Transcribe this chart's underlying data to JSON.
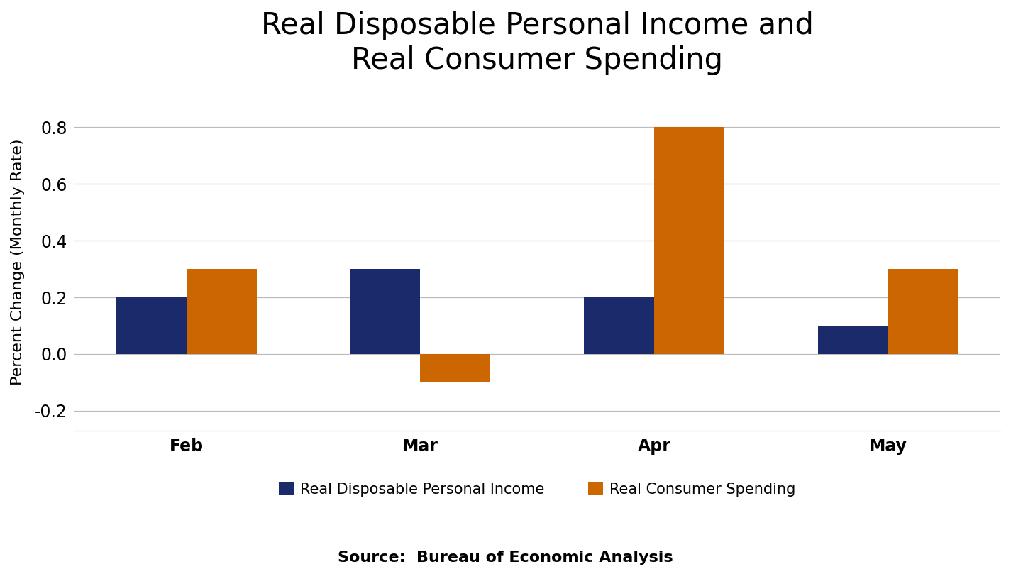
{
  "title": "Real Disposable Personal Income and\nReal Consumer Spending",
  "ylabel": "Percent Change (Monthly Rate)",
  "source": "Source:  Bureau of Economic Analysis",
  "categories": [
    "Feb",
    "Mar",
    "Apr",
    "May"
  ],
  "income_values": [
    0.2,
    0.3,
    0.2,
    0.1
  ],
  "spending_values": [
    0.3,
    -0.1,
    0.8,
    0.3
  ],
  "income_color": "#1B2A6B",
  "spending_color": "#CC6600",
  "ylim": [
    -0.27,
    0.92
  ],
  "yticks": [
    -0.2,
    0.0,
    0.2,
    0.4,
    0.6,
    0.8
  ],
  "bar_width": 0.3,
  "legend_income": "Real Disposable Personal Income",
  "legend_spending": "Real Consumer Spending",
  "title_fontsize": 30,
  "label_fontsize": 16,
  "tick_fontsize": 17,
  "legend_fontsize": 15,
  "source_fontsize": 16,
  "background_color": "#FFFFFF"
}
